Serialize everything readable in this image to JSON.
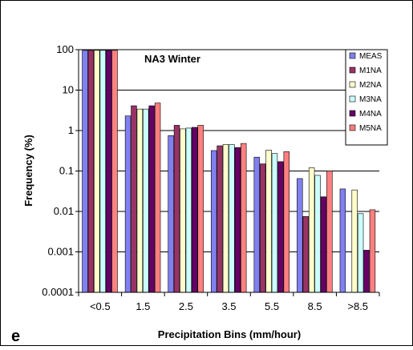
{
  "chart_data": {
    "type": "bar",
    "title": "NA3 Winter",
    "panel_label": "e",
    "xlabel": "Precipitation Bins (mm/hour)",
    "ylabel": "Frequency (%)",
    "yscale": "log",
    "ylim": [
      0.0001,
      100
    ],
    "yticks": [
      "0.0001",
      "0.001",
      "0.01",
      "0.1",
      "1",
      "10",
      "100"
    ],
    "grid": "horizontal",
    "legend_position": "top-right",
    "categories": [
      "<0.5",
      "1.5",
      "2.5",
      "3.5",
      "5.5",
      "8.5",
      ">8.5"
    ],
    "series": [
      {
        "name": "MEAS",
        "color": "#8080f0",
        "values": [
          96,
          2.3,
          0.75,
          0.32,
          0.22,
          0.065,
          0.036
        ]
      },
      {
        "name": "M1NA",
        "color": "#993366",
        "values": [
          96,
          4.1,
          1.35,
          0.42,
          0.15,
          0.0075,
          null
        ]
      },
      {
        "name": "M2NA",
        "color": "#ffffcc",
        "values": [
          96,
          3.4,
          1.1,
          0.45,
          0.33,
          0.12,
          0.034
        ]
      },
      {
        "name": "M3NA",
        "color": "#ccffff",
        "values": [
          96,
          3.4,
          1.15,
          0.45,
          0.27,
          0.078,
          0.0088
        ]
      },
      {
        "name": "M4NA",
        "color": "#660066",
        "values": [
          96,
          4.1,
          1.2,
          0.38,
          0.17,
          0.023,
          0.0011
        ]
      },
      {
        "name": "M5NA",
        "color": "#ff8080",
        "values": [
          96,
          4.8,
          1.35,
          0.48,
          0.3,
          0.1,
          0.011
        ]
      }
    ]
  }
}
